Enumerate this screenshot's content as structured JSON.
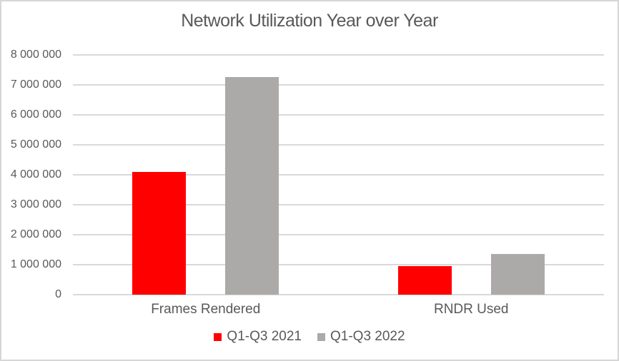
{
  "chart_data": {
    "type": "bar",
    "title": "Network Utilization Year over Year",
    "categories": [
      "Frames Rendered",
      "RNDR Used"
    ],
    "series": [
      {
        "name": "Q1-Q3 2021",
        "color": "#ff0000",
        "values": [
          4100000,
          950000
        ]
      },
      {
        "name": "Q1-Q3 2022",
        "color": "#aca9a9",
        "values": [
          7260000,
          1350000
        ]
      }
    ],
    "xlabel": "",
    "ylabel": "",
    "ylim": [
      0,
      8000000
    ],
    "ytick_interval": 1000000,
    "ytick_labels_bottom_to_top": [
      "0",
      "1 000 000",
      "2 000 000",
      "3 000 000",
      "4 000 000",
      "5 000 000",
      "6 000 000",
      "7 000 000",
      "8 000 000"
    ],
    "grid": true,
    "legend_position": "bottom"
  },
  "colors": {
    "series_2021": "#ff0000",
    "series_2022": "#aca9a9",
    "gridline": "#d9d9d9",
    "text": "#595959",
    "frame_border": "#d6d6d6",
    "background": "#ffffff"
  }
}
